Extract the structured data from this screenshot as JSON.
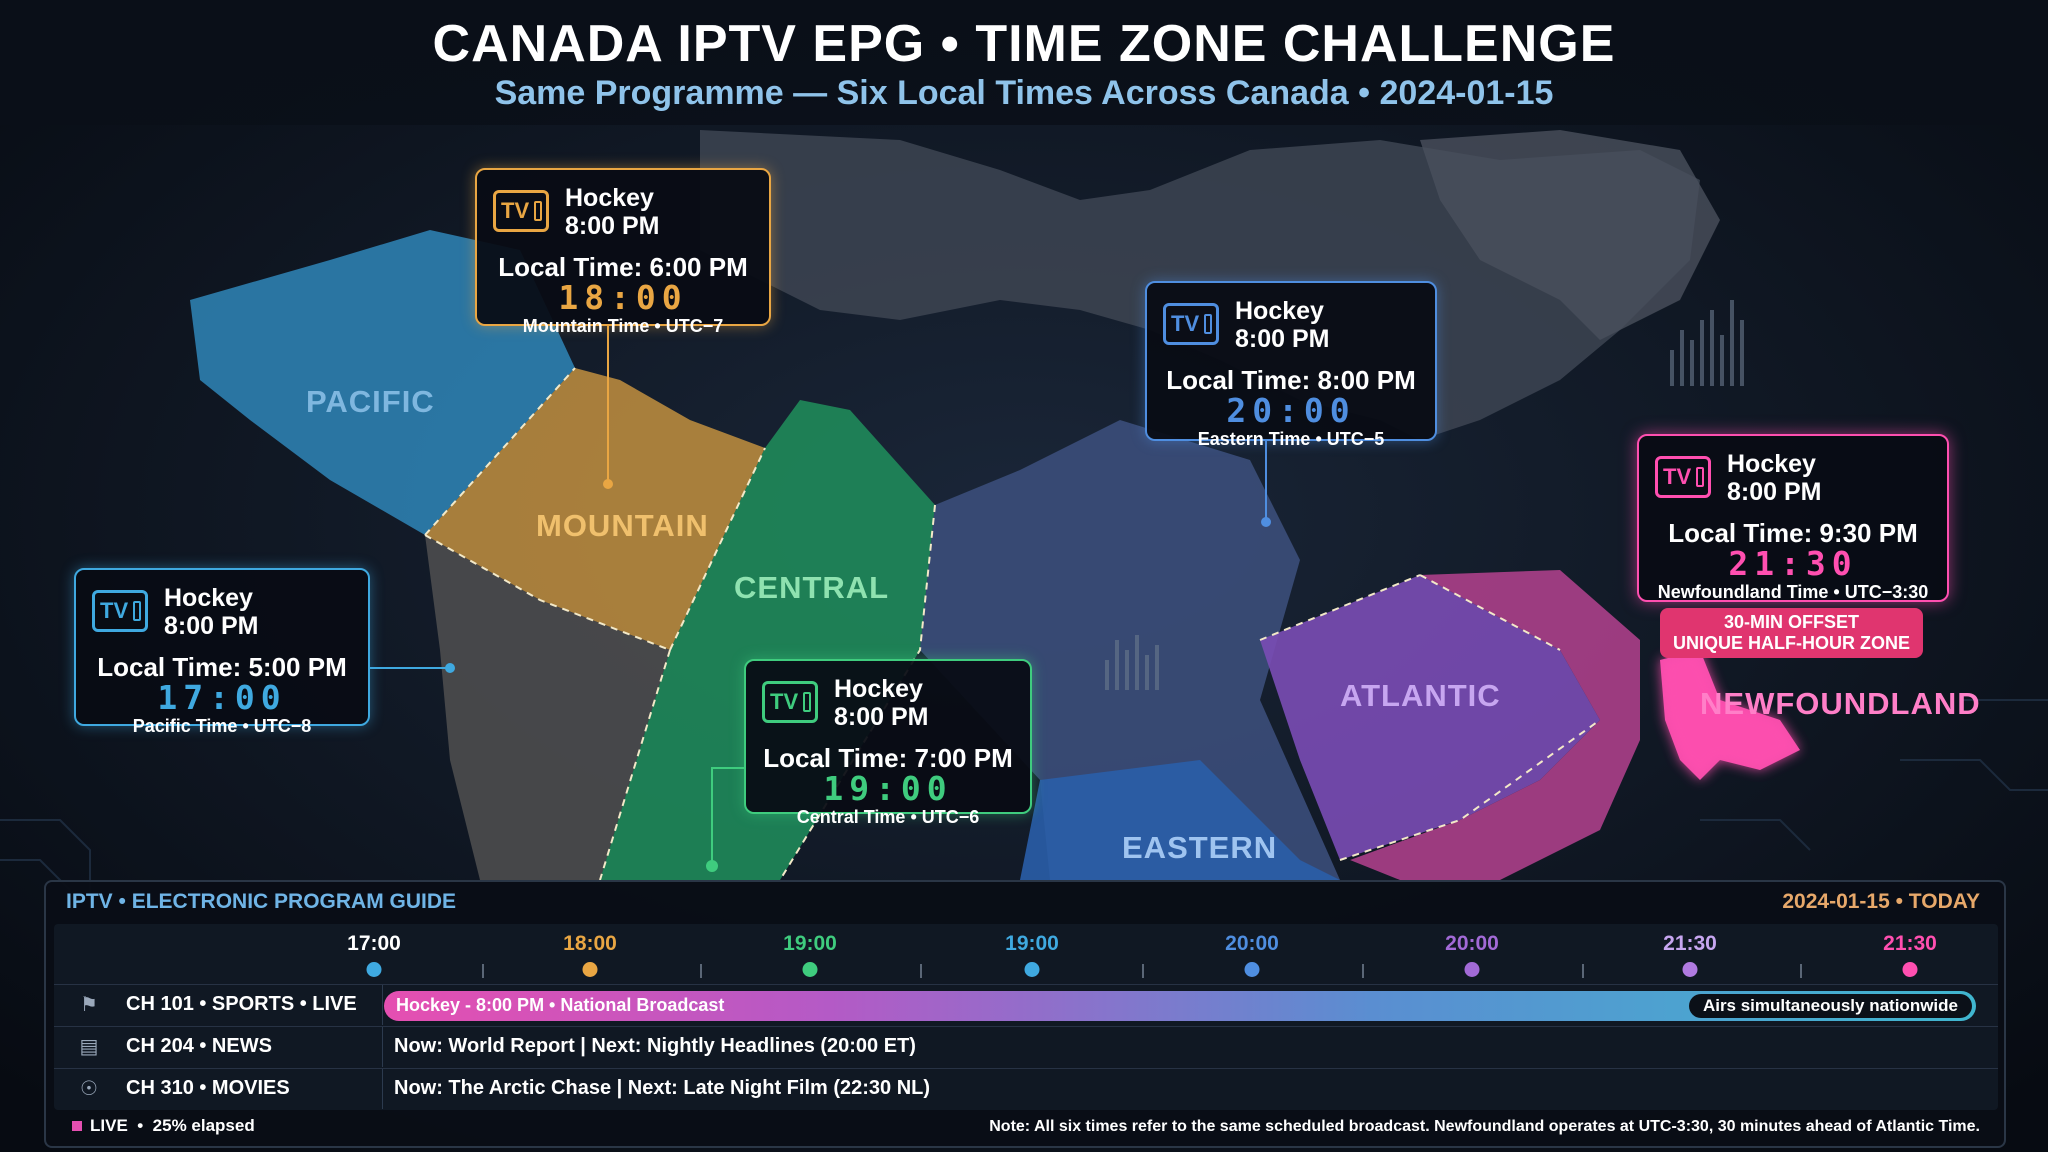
{
  "header": {
    "title": "CANADA IPTV EPG • TIME ZONE CHALLENGE",
    "subtitle": "Same Programme — Six Local Times Across Canada • 2024-01-15"
  },
  "colors": {
    "pacific": "#3fa9e0",
    "mountain": "#e9a643",
    "central": "#3fcc7e",
    "eastern": "#4f8ee0",
    "atlantic": "#a26ad6",
    "newfoundland": "#ff4fb0"
  },
  "zones": {
    "pacific": "PACIFIC",
    "mountain": "MOUNTAIN",
    "central": "CENTRAL",
    "atlantic": "ATLANTIC",
    "newfoundland": "NEWFOUNDLAND",
    "eastern": "EASTERN"
  },
  "cards": {
    "mountain": {
      "icon": "tv-icon",
      "program": "Hockey",
      "scheduled": "8:00 PM",
      "local": "Local Time: 6:00 PM",
      "digits": "18:00",
      "tz": "Mountain Time • UTC−7"
    },
    "eastern": {
      "icon": "tv-icon",
      "program": "Hockey",
      "scheduled": "8:00 PM",
      "local": "Local Time: 8:00 PM",
      "digits": "20:00",
      "tz": "Eastern Time • UTC−5"
    },
    "newfoundland": {
      "icon": "tv-icon",
      "program": "Hockey",
      "scheduled": "8:00 PM",
      "local": "Local Time: 9:30 PM",
      "digits": "21:30",
      "tz": "Newfoundland Time • UTC−3:30"
    },
    "pacific": {
      "icon": "tv-icon",
      "program": "Hockey",
      "scheduled": "8:00 PM",
      "local": "Local Time: 5:00 PM",
      "digits": "17:00",
      "tz": "Pacific Time • UTC−8"
    },
    "central": {
      "icon": "tv-icon",
      "program": "Hockey",
      "scheduled": "8:00 PM",
      "local": "Local Time: 7:00 PM",
      "digits": "19:00",
      "tz": "Central Time • UTC−6"
    }
  },
  "tv_text": "TV",
  "offset_badge": {
    "line1": "30-MIN OFFSET",
    "line2": "UNIQUE HALF-HOUR ZONE"
  },
  "epg": {
    "title": "IPTV • ELECTRONIC PROGRAM GUIDE",
    "date": "2024-01-15 • TODAY",
    "ticks": [
      "17:00",
      "18:00",
      "19:00",
      "19:00",
      "20:00",
      "20:00",
      "21:30",
      "21:30"
    ],
    "rows": [
      {
        "icon": "sports-icon",
        "channel": "CH 101 • SPORTS • LIVE",
        "program": "Hockey - 8:00 PM • National Broadcast",
        "tag": "Airs simultaneously nationwide"
      },
      {
        "icon": "news-icon",
        "channel": "CH 204 • NEWS",
        "program": "Now: World Report | Next: Nightly Headlines (20:00 ET)"
      },
      {
        "icon": "movies-icon",
        "channel": "CH 310 • MOVIES",
        "program": "Now: The Arctic Chase | Next: Late Night Film (22:30 NL)"
      }
    ],
    "live_label": "LIVE",
    "elapsed": "25% elapsed",
    "progress_fraction": 0.25,
    "note": "Note: All six times refer to the same scheduled broadcast. Newfoundland operates at UTC-3:30, 30 minutes ahead of Atlantic Time."
  }
}
